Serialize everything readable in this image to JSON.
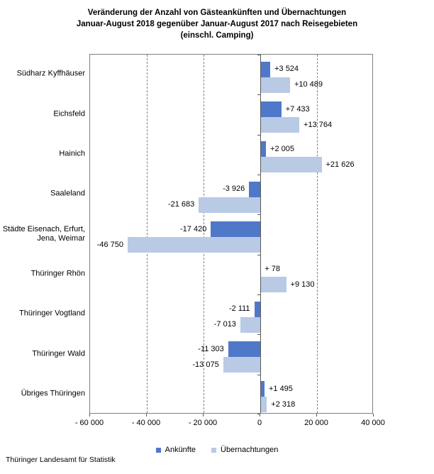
{
  "title": {
    "line1": "Veränderung der Anzahl von Gästeankünften und Übernachtungen",
    "line2": "Januar-August 2018 gegenüber Januar-August 2017 nach Reisegebieten",
    "line3": "(einschl. Camping)"
  },
  "chart_data": {
    "type": "bar",
    "orientation": "horizontal",
    "categories": [
      "Südharz Kyffhäuser",
      "Eichsfeld",
      "Hainich",
      "Saaleland",
      "Städte Eisenach, Erfurt, Jena, Weimar",
      "Thüringer Rhön",
      "Thüringer Vogtland",
      "Thüringer Wald",
      "Übriges Thüringen"
    ],
    "categories_display": [
      "Südharz Kyffhäuser",
      "Eichsfeld",
      "Hainich",
      "Saaleland",
      "Städte Eisenach, Erfurt,\nJena, Weimar",
      "Thüringer Rhön",
      "Thüringer Vogtland",
      "Thüringer Wald",
      "Übriges Thüringen"
    ],
    "series": [
      {
        "name": "Ankünfte",
        "color": "#5078C8",
        "values": [
          3524,
          7433,
          2005,
          -3926,
          -17420,
          78,
          -2111,
          -11303,
          1495
        ],
        "labels": [
          "+3 524",
          "+7 433",
          "+2 005",
          "-3 926",
          "-17 420",
          "+ 78",
          "-2 111",
          "-11 303",
          "+1 495"
        ]
      },
      {
        "name": "Übernachtungen",
        "color": "#B8CAE4",
        "values": [
          10489,
          13764,
          21626,
          -21683,
          -46750,
          9130,
          -7013,
          -13075,
          2318
        ],
        "labels": [
          "+10 489",
          "+13 764",
          "+21 626",
          "-21 683",
          "-46 750",
          "+9 130",
          "-7 013",
          "-13 075",
          "+2 318"
        ]
      }
    ],
    "xlim": [
      -60000,
      40000
    ],
    "x_ticks": [
      -60000,
      -40000,
      -20000,
      0,
      20000,
      40000
    ],
    "x_tick_labels": [
      "- 60 000",
      "- 40 000",
      "- 20 000",
      "0",
      "20 000",
      "40 000"
    ],
    "grid": "vertical dashed gridlines at interior ticks, solid zero axis",
    "legend_position": "bottom"
  },
  "legend": {
    "items": [
      {
        "label": "Ankünfte",
        "color": "#5078C8"
      },
      {
        "label": "Übernachtungen",
        "color": "#B8CAE4"
      }
    ]
  },
  "footer": "Thüringer Landesamt für Statistik"
}
